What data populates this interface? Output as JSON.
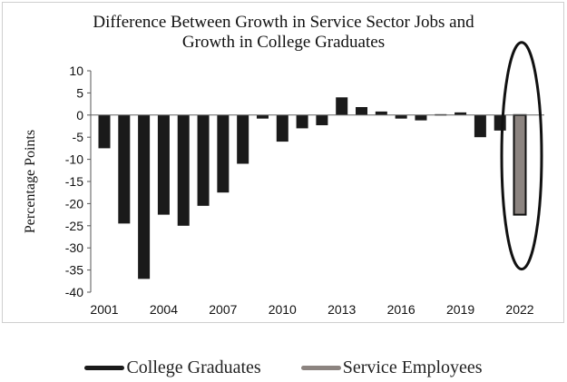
{
  "chart_data": {
    "type": "bar",
    "title_lines": [
      "Difference Between Growth in Service Sector Jobs and",
      "Growth in College Graduates"
    ],
    "ylabel": "Percentage Points",
    "xlabel": "",
    "ylim": [
      -40,
      10
    ],
    "yticks": [
      10,
      5,
      0,
      -5,
      -10,
      -15,
      -20,
      -25,
      -30,
      -35,
      -40
    ],
    "x_tick_labels": [
      "2001",
      "2004",
      "2007",
      "2010",
      "2013",
      "2016",
      "2019",
      "2022"
    ],
    "categories": [
      "2001",
      "2002",
      "2003",
      "2004",
      "2005",
      "2006",
      "2007",
      "2008",
      "2009",
      "2010",
      "2011",
      "2012",
      "2013",
      "2014",
      "2015",
      "2016",
      "2017",
      "2018",
      "2019",
      "2020",
      "2021",
      "2022"
    ],
    "values": [
      -7.5,
      -24.5,
      -37,
      -22.5,
      -25,
      -20.5,
      -17.5,
      -11,
      -0.8,
      -6,
      -3,
      -2.3,
      4,
      1.8,
      0.8,
      -0.8,
      -1.2,
      0.2,
      0.6,
      -5,
      -3.5,
      -22.5
    ],
    "series_of_bar": [
      "College Graduates",
      "College Graduates",
      "College Graduates",
      "College Graduates",
      "College Graduates",
      "College Graduates",
      "College Graduates",
      "College Graduates",
      "College Graduates",
      "College Graduates",
      "College Graduates",
      "College Graduates",
      "College Graduates",
      "College Graduates",
      "College Graduates",
      "College Graduates",
      "College Graduates",
      "College Graduates",
      "College Graduates",
      "College Graduates",
      "College Graduates",
      "Service Employees"
    ],
    "highlighted_category": "2022",
    "legend": [
      {
        "name": "College Graduates",
        "color": "#1a1a1a"
      },
      {
        "name": "Service Employees",
        "color": "#8c8480"
      }
    ],
    "legend_position": "bottom",
    "grid": false
  }
}
